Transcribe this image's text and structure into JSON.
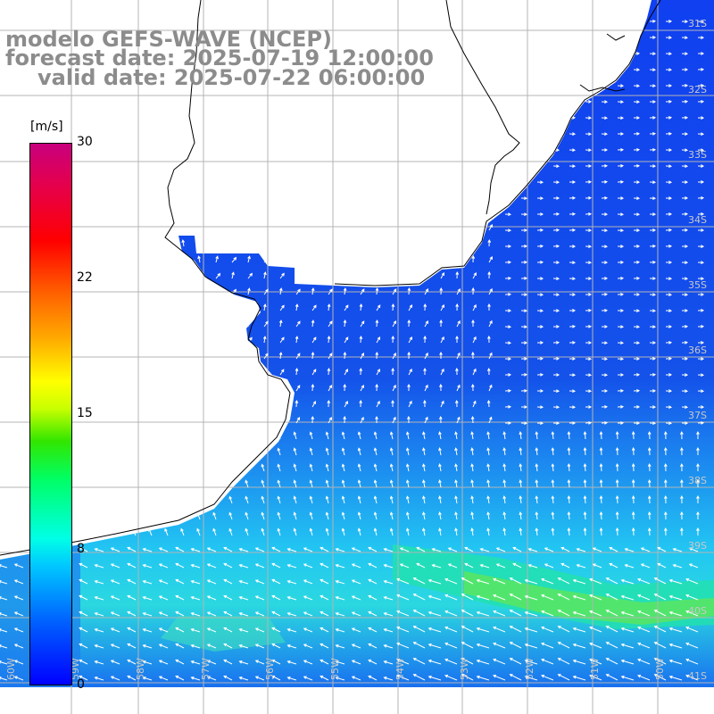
{
  "title": {
    "line1": "modelo GEFS-WAVE (NCEP)",
    "line2": "forecast date: 2025-07-19 12:00:00",
    "line3": "valid date: 2025-07-22 06:00:00"
  },
  "colorbar": {
    "unit": "[m/s]",
    "ticks": [
      "30",
      "22",
      "15",
      "8",
      "0"
    ],
    "range": [
      0,
      30
    ],
    "colors": [
      "#0000ff",
      "#00c8ff",
      "#00ff64",
      "#ffff00",
      "#ff0000",
      "#c8007d"
    ]
  },
  "map": {
    "lat_labels": [
      "31S",
      "32S",
      "33S",
      "34S",
      "35S",
      "36S",
      "37S",
      "38S",
      "39S",
      "40S",
      "41S"
    ],
    "lon_labels": [
      "60W",
      "59W",
      "58W",
      "57W",
      "56W",
      "55W",
      "54W",
      "53W",
      "52W",
      "51W",
      "50W"
    ],
    "ocean_color": "#1e50e6",
    "strong_wind_color": "#00e6b4",
    "arrow_color": "#ffffff",
    "grid_color": "#b4b4b4",
    "coast_color": "#000000"
  }
}
